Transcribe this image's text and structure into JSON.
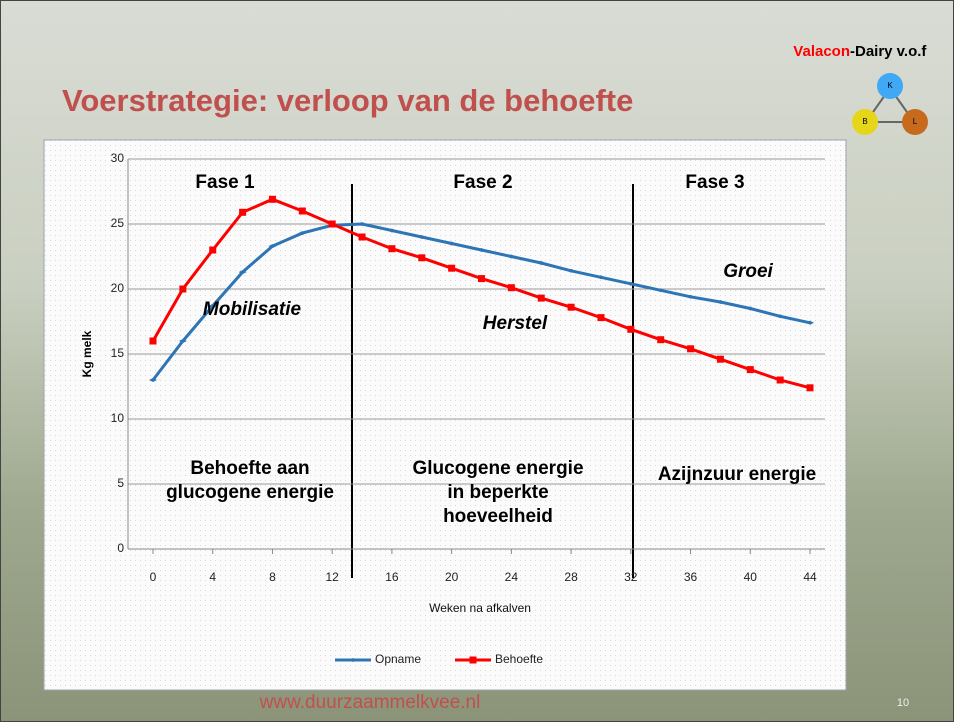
{
  "slide": {
    "title": "Voerstrategie: verloop van de behoefte",
    "brand": "Valacon",
    "brand_suffix": "-Dairy v.o.f",
    "logo_letters": [
      "K",
      "B",
      "L"
    ],
    "footer": "www.duurzaammelkvee.nl",
    "page_number": "10"
  },
  "chart_data": {
    "type": "line",
    "x_label": "Weken na afkalven",
    "y_label": "Kg melk",
    "x": [
      0,
      2,
      4,
      6,
      8,
      10,
      12,
      14,
      16,
      18,
      20,
      22,
      24,
      26,
      28,
      30,
      32,
      34,
      36,
      38,
      40,
      42,
      44
    ],
    "series": [
      {
        "name": "Opname",
        "color": "#2e75b6",
        "values": [
          13,
          16,
          18.7,
          21.3,
          23.3,
          24.3,
          24.9,
          25,
          24.5,
          24,
          23.5,
          23,
          22.5,
          22,
          21.4,
          20.9,
          20.4,
          19.9,
          19.4,
          19,
          18.5,
          17.9,
          17.4
        ]
      },
      {
        "name": "Behoefte",
        "color": "#ff0000",
        "values": [
          16,
          20,
          23,
          25.9,
          26.9,
          26,
          25,
          24,
          23.1,
          22.4,
          21.6,
          20.8,
          20.1,
          19.3,
          18.6,
          17.8,
          16.9,
          16.1,
          15.4,
          14.6,
          13.8,
          13,
          12.4
        ]
      }
    ],
    "xlim": [
      0,
      44
    ],
    "xticks": [
      0,
      4,
      8,
      12,
      16,
      20,
      24,
      28,
      32,
      36,
      40,
      44
    ],
    "ylim": [
      0,
      30
    ],
    "yticks": [
      0,
      5,
      10,
      15,
      20,
      25,
      30
    ],
    "grid": true,
    "legend": "bottom",
    "annotations": [
      [
        "Fase 1"
      ],
      [
        "Fase 2"
      ],
      [
        "Fase 3"
      ],
      [
        "Mobilisatie"
      ],
      [
        "Herstel"
      ],
      [
        "Groei"
      ],
      [
        "Behoefte aan",
        "glucogene energie"
      ],
      [
        "Glucogene energie",
        "in beperkte",
        "hoeveelheid"
      ],
      [
        "Azijnzuur energie"
      ]
    ]
  }
}
